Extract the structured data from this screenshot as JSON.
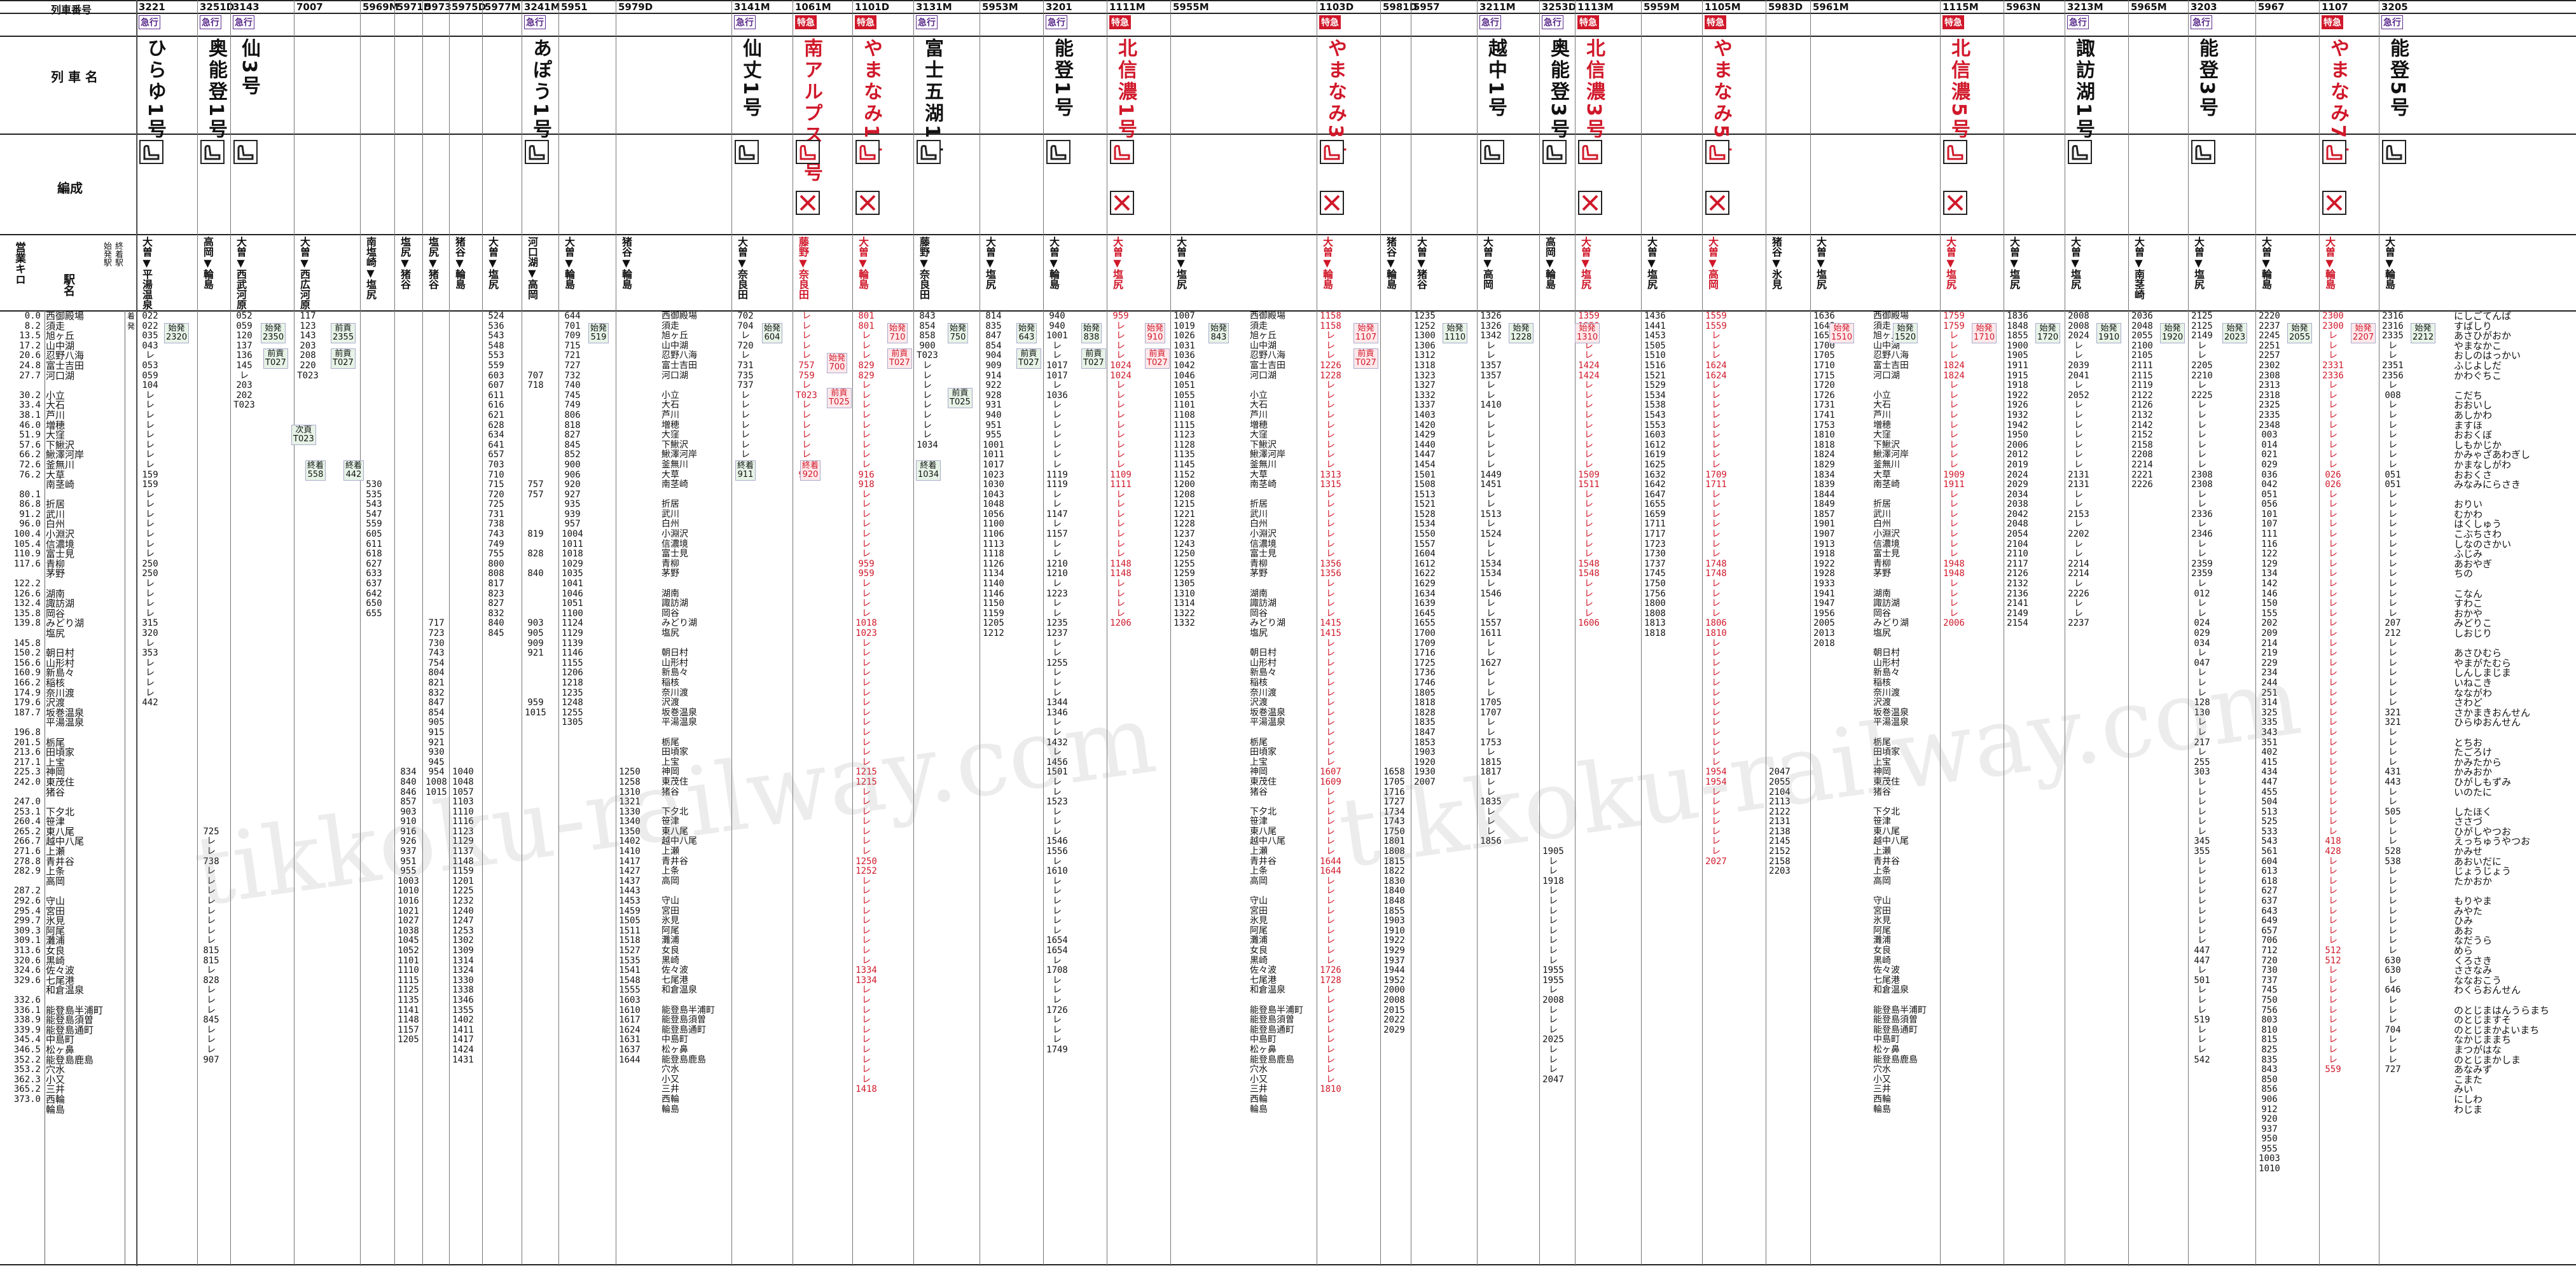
{
  "header": {
    "row_label_number": "列車番号",
    "row_label_name": "列 車 名",
    "row_label_formation": "編成",
    "row_label_km": "営業キロ",
    "row_label_station": "駅名",
    "row_label_origin": "始発駅",
    "row_label_terminal": "終着駅"
  },
  "trains": [
    {
      "no": "3221",
      "type": "急行",
      "name": "ひらゆ1号",
      "dest": "大曽▼平湯温泉"
    },
    {
      "no": "3251D",
      "type": "急行",
      "name": "奥能登1号",
      "dest": "高岡▼輪島"
    },
    {
      "no": "3143",
      "type": "急行",
      "name": "仙3号",
      "dest": "大曽▼西武河原"
    },
    {
      "no": "7007",
      "type": "",
      "name": "",
      "dest": "大曽▼西広河原"
    },
    {
      "no": "5969M",
      "type": "",
      "name": "",
      "dest": "南塩崎▼塩尻"
    },
    {
      "no": "5971D",
      "type": "",
      "name": "",
      "dest": "塩尻▼猪谷"
    },
    {
      "no": "5973",
      "type": "",
      "name": "",
      "dest": "塩尻▼猪谷"
    },
    {
      "no": "5975D",
      "type": "",
      "name": "",
      "dest": "猪谷▼輪島"
    },
    {
      "no": "5977M",
      "type": "",
      "name": "",
      "dest": "大曽▼塩尻"
    },
    {
      "no": "3241M",
      "type": "急行",
      "name": "あぽう1号",
      "dest": "河口湖▼高岡"
    },
    {
      "no": "5951",
      "type": "",
      "name": "",
      "dest": "大曽▼輪島"
    },
    {
      "no": "5979D",
      "type": "",
      "name": "",
      "dest": "猪谷▼輪島"
    },
    {
      "no": "3141M",
      "type": "急行",
      "name": "仙丈1号",
      "dest": "大曽▼奈良田"
    },
    {
      "no": "1061M",
      "type": "特急",
      "name": "南アルプス1号",
      "dest": "藤野▼奈良田"
    },
    {
      "no": "1101D",
      "type": "特急",
      "name": "やまなみ1号",
      "dest": "大曽▼輪島"
    },
    {
      "no": "3131M",
      "type": "急行",
      "name": "富士五湖1号",
      "dest": "藤野▼奈良田"
    },
    {
      "no": "5953M",
      "type": "",
      "name": "",
      "dest": "大曽▼塩尻"
    },
    {
      "no": "3201",
      "type": "急行",
      "name": "能登1号",
      "dest": "大曽▼輪島"
    },
    {
      "no": "1111M",
      "type": "特急",
      "name": "北信濃1号",
      "dest": "大曽▼塩尻"
    },
    {
      "no": "5955M",
      "type": "",
      "name": "",
      "dest": "大曽▼塩尻"
    },
    {
      "no": "1103D",
      "type": "特急",
      "name": "やまなみ3号",
      "dest": "大曽▼輪島"
    },
    {
      "no": "5981D",
      "type": "",
      "name": "",
      "dest": "猪谷▼輪島"
    },
    {
      "no": "5957",
      "type": "",
      "name": "",
      "dest": "大曽▼猪谷"
    },
    {
      "no": "3211M",
      "type": "急行",
      "name": "越中1号",
      "dest": "大曽▼高岡"
    },
    {
      "no": "3253D",
      "type": "急行",
      "name": "奥能登3号",
      "dest": "高岡▼輪島"
    },
    {
      "no": "1113M",
      "type": "特急",
      "name": "北信濃3号",
      "dest": "大曽▼塩尻"
    },
    {
      "no": "5959M",
      "type": "",
      "name": "",
      "dest": "大曽▼塩尻"
    },
    {
      "no": "1105M",
      "type": "特急",
      "name": "やまなみ5号",
      "dest": "大曽▼高岡"
    },
    {
      "no": "5983D",
      "type": "",
      "name": "",
      "dest": "猪谷▼氷見"
    },
    {
      "no": "5961M",
      "type": "",
      "name": "",
      "dest": "大曽▼塩尻"
    },
    {
      "no": "1115M",
      "type": "特急",
      "name": "北信濃5号",
      "dest": "大曽▼塩尻"
    },
    {
      "no": "5963N",
      "type": "",
      "name": "",
      "dest": "大曽▼塩尻"
    },
    {
      "no": "3213M",
      "type": "急行",
      "name": "諏訪湖1号",
      "dest": "大曽▼塩尻"
    },
    {
      "no": "5965M",
      "type": "",
      "name": "",
      "dest": "大曽▼南茎崎"
    },
    {
      "no": "3203",
      "type": "急行",
      "name": "能登3号",
      "dest": "大曽▼塩尻"
    },
    {
      "no": "5967",
      "type": "",
      "name": "",
      "dest": "大曽▼輪島"
    },
    {
      "no": "1107",
      "type": "特急",
      "name": "やまなみ7号",
      "dest": "大曽▼輪島"
    },
    {
      "no": "3205",
      "type": "急行",
      "name": "能登5号",
      "dest": "大曽▼輪島"
    }
  ],
  "km": "0.0\n8.2\n13.5\n17.2\n20.6\n24.8\n27.7\n\n30.2\n33.4\n38.1\n46.0\n51.9\n57.6\n66.2\n72.6\n76.2\n\n80.1\n86.8\n91.2\n96.0\n100.4\n105.4\n110.9\n117.6\n\n122.2\n126.6\n132.4\n135.8\n139.8\n\n145.8\n150.2\n156.6\n160.9\n166.2\n174.9\n179.6\n187.7\n\n196.8\n201.5\n213.6\n217.1\n225.3\n242.0\n\n247.0\n253.1\n260.4\n265.2\n266.7\n271.6\n278.8\n282.9\n\n287.2\n292.6\n295.4\n299.7\n309.3\n309.1\n313.6\n320.6\n324.6\n329.6\n\n332.6\n336.1\n338.9\n339.9\n345.4\n346.5\n352.2\n353.2\n362.3\n365.2\n373.0",
  "stations": "西御殿場\n須走\n旭ヶ丘\n山中湖\n忍野八海\n富士吉田\n河口湖\n\n小立\n大石\n芦川\n増穂\n大窪\n下鰍沢\n鰍澤河岸\n釜無川\n大草\n南茎崎\n\n折居\n武川\n白州\n小淵沢\n信濃境\n富士見\n青柳\n茅野\n\n湖南\n諏訪湖\n岡谷\nみどり湖\n塩尻\n\n朝日村\n山形村\n新島々\n稲核\n奈川渡\n沢渡\n坂巻温泉\n平湯温泉\n\n栃尾\n田頃家\n上宝\n神岡\n東茂住\n猪谷\n\n下夕北\n笹津\n東八尾\n越中八尾\n上瀬\n青井谷\n上条\n高岡\n\n守山\n宮田\n氷見\n阿尾\n灘浦\n女良\n黒崎\n佐々波\n七尾港\n和倉温泉\n\n能登島半浦町\n能登島須曽\n能登島通町\n中島町\n松ヶ鼻\n能登島鹿島\n穴水\n小又\n三井\n西輪\n輪島",
  "kana": "にしごてんば\nすばしり\nあさひがおか\nやまなかこ\nおしのはっかい\nふじよしだ\nかわぐちこ\n\nこだち\nおおいし\nあしかわ\nますほ\nおおくぼ\nしもかじか\nかみゃざあわぎし\nかまなしがわ\nおおくさ\nみなみにらさき\n\nおりい\nむかわ\nはくしゅう\nこぶちさわ\nしなのさかい\nふじみ\nあおやぎ\nちの\n\nこなん\nすわこ\nおかや\nみどりこ\nしおじり\n\nあさひむら\nやまがたむら\nしんしまじま\nいねこき\nなながわ\nさわど\nさかまきおんせん\nひらゆおんせん\n\nとちお\nたごろけ\nかみたから\nかみおか\nひがしもずみ\nいのたに\n\nしたほく\nささづ\nひがしやつお\nえっちゅうやつお\nかみせ\nあおいだに\nじょうじょう\nたかおか\n\nもりやま\nみやた\nひみ\nあお\nなだうら\nめら\nくろさき\nささなみ\nななおこう\nわくらおんせん\n\nのとじまはんうらまち\nのとじますそ\nのとじまかよいまち\nなかじままち\nまつがはな\nのとじまかしま\nあなみず\nこまた\nみい\nにしわ\nわじま",
  "times": [
    "022\n022\n035\n043\nレ\n053\n059\n104\nレ\nレ\nレ\nレ\nレ\nレ\nレ\nレ\n159\n159\nレ\nレ\nレ\nレ\nレ\nレ\nレ\n250\n250\nレ\nレ\nレ\nレ\n315\n320\nレ\n353\nレ\nレ\nレ\nレ\n442",
    "\n\n\n\n\n\n\n\n\n\n\n\n\n\n\n\n\n\n\n\n\n\n\n\n\n\n\n\n\n\n\n\n\n\n\n\n\n\n\n\n\n\n\n\n\n\n\n\n\n\n\n\n725\nレ\nレ\n738\nレ\nレ\nレ\nレ\nレ\nレ\nレ\nレ\n815\n815\nレ\n828\nレ\nレ\nレ\n845\nレ\nレ\nレ\n907",
    "052\n059\n120\n137\n136\n145\nレ\n203\n202\nT023",
    "117\n123\n143\n203\n208\n220\nT023",
    "\n\n\n\n\n\n\n\n\n\n\n\n\n\n\n\n\n530\n535\n543\n547\n559\n605\n611\n618\n627\n633\n637\n642\n650\n655",
    "\n\n\n\n\n\n\n\n\n\n\n\n\n\n\n\n\n\n\n\n\n\n\n\n\n\n\n\n\n\n\n\n\n\n\n\n\n\n\n\n\n\n\n\n\n\n834\n840\n846\n857\n903\n910\n916\n926\n937\n951\n955\n1003\n1010\n1016\n1021\n1027\n1038\n1045\n1052\n1101\n1110\n1115\n1125\n1135\n1141\n1148\n1157\n1205",
    "\n\n\n\n\n\n\n\n\n\n\n\n\n\n\n\n\n\n\n\n\n\n\n\n\n\n\n\n\n\n\n717\n723\n730\n743\n754\n804\n821\n832\n847\n854\n905\n915\n921\n930\n945\n954\n1008\n1015",
    "\n\n\n\n\n\n\n\n\n\n\n\n\n\n\n\n\n\n\n\n\n\n\n\n\n\n\n\n\n\n\n\n\n\n\n\n\n\n\n\n\n\n\n\n\n\n1040\n1048\n1057\n1103\n1110\n1116\n1123\n1129\n1137\n1148\n1159\n1201\n1225\n1232\n1240\n1247\n1253\n1302\n1309\n1314\n1324\n1330\n1338\n1346\n1355\n1402\n1411\n1417\n1424\n1431",
    "524\n536\n543\n548\n553\n559\n603\n607\n611\n616\n621\n628\n634\n641\n657\n703\n710\n715\n720\n725\n731\n738\n743\n749\n755\n800\n808\n817\n823\n827\n832\n840\n845",
    "\n\n\n\n\n\n707\n718\n\n\n\n\n\n\n\n\n\n757\n757\n\n\n\n819\n\n828\n\n840\n\n\n\n\n903\n905\n909\n921\n\n\n\n\n959\n1015",
    "644\n701\n709\n715\n721\n727\n732\n740\n745\n749\n806\n818\n827\n845\n852\n900\n906\n920\n927\n935\n939\n957\n1004\n1011\n1018\n1029\n1035\n1041\n1046\n1051\n1100\n1124\n1129\n1139\n1146\n1155\n1206\n1218\n1235\n1248\n1255\n1305",
    "\n\n\n\n\n\n\n\n\n\n\n\n\n\n\n\n\n\n\n\n\n\n\n\n\n\n\n\n\n\n\n\n\n\n\n\n\n\n\n\n\n\n\n\n\n\n1250\n1258\n1310\n1321\n1330\n1340\n1350\n1402\n1410\n1417\n1427\n1437\n1443\n1453\n1459\n1505\n1511\n1518\n1527\n1535\n1541\n1548\n1555\n1603\n1610\n1617\n1624\n1631\n1637\n1644",
    "702\n704\nレ\n720\nレ\n731\n735\n737\nレ\nレ\nレ\nレ\nレ\nレ\nレ\nレ\n911",
    "レ\nレ\nレ\nレ\nレ\n757\n759\nレ\nT023\nレ\nレ\nレ\nレ\nレ\nレ\nレ\n920",
    "801\n801\nレ\nレ\nレ\n829\n829\nレ\nレ\nレ\nレ\nレ\nレ\nレ\nレ\nレ\n916\n918\nレ\nレ\nレ\nレ\nレ\nレ\nレ\n959\n959\nレ\nレ\nレ\nレ\n1018\n1023\nレ\nレ\nレ\nレ\nレ\nレ\nレ\nレ\nレ\nレ\nレ\nレ\nレ\n1215\n1215\nレ\nレ\nレ\nレ\nレ\nレ\nレ\n1250\n1252\nレ\nレ\nレ\nレ\nレ\nレ\nレ\nレ\nレ\n1334\n1334\nレ\nレ\nレ\nレ\nレ\nレ\nレ\nレ\nレ\nレ\n1418",
    "843\n854\n858\n900\nT023\nレ\nレ\nレ\nレ\nレ\nレ\nレ\nレ\n1034",
    "814\n835\n847\n854\n904\n909\n914\n922\n928\n931\n940\n951\n955\n1001\n1011\n1017\n1023\n1030\n1043\n1048\n1056\n1100\n1106\n1113\n1118\n1126\n1134\n1140\n1146\n1150\n1159\n1205\n1212",
    "940\n940\n1001\nレ\nレ\n1017\n1017\nレ\n1036\nレ\nレ\nレ\nレ\nレ\nレ\nレ\n1119\n1119\nレ\nレ\n1147\nレ\n1157\nレ\nレ\n1210\n1210\nレ\n1223\nレ\nレ\n1235\n1237\nレ\nレ\n1255\nレ\nレ\nレ\n1344\n1346\nレ\nレ\n1432\nレ\n1456\n1501\nレ\nレ\n1523\nレ\nレ\nレ\n1546\n1556\nレ\n1610\nレ\nレ\nレ\nレ\nレ\nレ\n1654\n1654\nレ\n1708\nレ\nレ\nレ\n1726\nレ\nレ\nレ\n1749",
    "959\nレ\nレ\nレ\nレ\n1024\n1024\nレ\nレ\nレ\nレ\nレ\nレ\nレ\nレ\nレ\n1109\n1111\nレ\nレ\nレ\nレ\nレ\nレ\nレ\n1148\n1148\nレ\nレ\nレ\nレ\n1206",
    "1007\n1019\n1026\n1031\n1036\n1042\n1046\n1051\n1055\n1101\n1108\n1115\n1123\n1128\n1135\n1145\n1152\n1200\n1208\n1215\n1221\n1228\n1237\n1243\n1250\n1255\n1259\n1305\n1310\n1314\n1322\n1332",
    "1158\n1158\nレ\nレ\nレ\n1226\n1228\nレ\nレ\nレ\nレ\nレ\nレ\nレ\nレ\nレ\n1313\n1315\nレ\nレ\nレ\nレ\nレ\nレ\nレ\n1356\n1356\nレ\nレ\nレ\nレ\n1415\n1415\nレ\nレ\nレ\nレ\nレ\nレ\nレ\nレ\nレ\nレ\nレ\nレ\nレ\n1607\n1609\nレ\nレ\nレ\nレ\nレ\nレ\nレ\n1644\n1644\nレ\nレ\nレ\nレ\nレ\nレ\nレ\nレ\nレ\n1726\n1728\nレ\nレ\nレ\nレ\nレ\nレ\nレ\nレ\nレ\nレ\n1810",
    "\n\n\n\n\n\n\n\n\n\n\n\n\n\n\n\n\n\n\n\n\n\n\n\n\n\n\n\n\n\n\n\n\n\n\n\n\n\n\n\n\n\n\n\n\n\n1658\n1705\n1716\n1727\n1734\n1743\n1750\n1801\n1808\n1815\n1822\n1830\n1840\n1848\n1855\n1903\n1910\n1922\n1929\n1937\n1944\n1952\n2000\n2008\n2015\n2022\n2029",
    "1235\n1252\n1300\n1306\n1312\n1318\n1323\n1327\n1332\n1337\n1403\n1420\n1429\n1440\n1447\n1454\n1501\n1508\n1513\n1521\n1528\n1534\n1550\n1557\n1604\n1612\n1622\n1629\n1634\n1639\n1645\n1655\n1700\n1709\n1716\n1725\n1736\n1746\n1805\n1818\n1828\n1835\n1847\n1853\n1903\n1920\n1930\n2007",
    "1326\n1326\n1342\nレ\nレ\n1357\n1357\nレ\nレ\n1410\nレ\nレ\nレ\nレ\nレ\nレ\n1449\n1451\nレ\nレ\n1513\nレ\n1524\nレ\nレ\n1534\n1534\nレ\n1546\nレ\nレ\n1557\n1611\nレ\nレ\n1627\nレ\nレ\nレ\n1705\n1707\nレ\nレ\n1753\nレ\n1815\n1817\nレ\nレ\n1835\nレ\nレ\nレ\n1856",
    "\n\n\n\n\n\n\n\n\n\n\n\n\n\n\n\n\n\n\n\n\n\n\n\n\n\n\n\n\n\n\n\n\n\n\n\n\n\n\n\n\n\n\n\n\n\n\n\n\n\n\n\n\n\n1905\nレ\nレ\n1918\nレ\nレ\nレ\nレ\nレ\nレ\nレ\nレ\n1955\n1955\nレ\n2008\nレ\nレ\nレ\n2025\nレ\nレ\nレ\n2047",
    "1359\n1359\nレ\nレ\nレ\n1424\n1424\nレ\nレ\nレ\nレ\nレ\nレ\nレ\nレ\nレ\n1509\n1511\nレ\nレ\nレ\nレ\nレ\nレ\nレ\n1548\n1548\nレ\nレ\nレ\nレ\n1606",
    "1436\n1441\n1453\n1505\n1510\n1516\n1521\n1529\n1534\n1538\n1543\n1553\n1603\n1612\n1619\n1625\n1632\n1642\n1647\n1655\n1659\n1711\n1717\n1723\n1730\n1737\n1745\n1750\n1756\n1800\n1808\n1813\n1818",
    "1559\n1559\nレ\nレ\nレ\n1624\n1624\nレ\nレ\nレ\nレ\nレ\nレ\nレ\nレ\nレ\n1709\n1711\nレ\nレ\nレ\nレ\nレ\nレ\nレ\n1748\n1748\nレ\nレ\nレ\nレ\n1806\n1810\nレ\nレ\nレ\nレ\nレ\nレ\nレ\nレ\nレ\nレ\nレ\nレ\nレ\n1954\n1954\nレ\nレ\nレ\nレ\nレ\nレ\nレ\n2027",
    "\n\n\n\n\n\n\n\n\n\n\n\n\n\n\n\n\n\n\n\n\n\n\n\n\n\n\n\n\n\n\n\n\n\n\n\n\n\n\n\n\n\n\n\n\n\n2047\n2055\n2104\n2113\n2122\n2131\n2138\n2145\n2152\n2158\n2203",
    "1636\n1648\n1655\n1700\n1705\n1710\n1715\n1720\n1726\n1731\n1741\n1753\n1810\n1818\n1824\n1829\n1834\n1839\n1844\n1849\n1857\n1901\n1907\n1913\n1918\n1922\n1928\n1933\n1941\n1947\n1956\n2005\n2013\n2018",
    "1759\n1759\nレ\nレ\nレ\n1824\n1824\nレ\nレ\nレ\nレ\nレ\nレ\nレ\nレ\nレ\n1909\n1911\nレ\nレ\nレ\nレ\nレ\nレ\nレ\n1948\n1948\nレ\nレ\nレ\nレ\n2006",
    "1836\n1848\n1855\n1900\n1905\n1911\n1915\n1918\n1922\n1926\n1932\n1942\n1950\n2006\n2012\n2019\n2024\n2029\n2034\n2038\n2042\n2048\n2054\n2104\n2110\n2117\n2126\n2132\n2136\n2141\n2149\n2154",
    "2008\n2008\n2024\nレ\nレ\n2039\n2041\nレ\n2052\nレ\nレ\nレ\nレ\nレ\nレ\nレ\n2131\n2131\nレ\nレ\n2153\nレ\n2202\nレ\nレ\n2214\n2214\nレ\n2226\nレ\nレ\n2237",
    "2036\n2048\n2055\n2100\n2105\n2111\n2115\n2119\n2122\n2126\n2132\n2142\n2152\n2158\n2208\n2214\n2221\n2226",
    "2125\n2125\n2149\nレ\nレ\n2205\n2210\nレ\n2225\nレ\nレ\nレ\nレ\nレ\nレ\nレ\n2308\n2308\nレ\nレ\n2336\nレ\n2346\nレ\nレ\n2359\n2359\nレ\n012\nレ\nレ\n024\n029\n034\nレ\n047\nレ\nレ\nレ\n128\n130\nレ\nレ\n217\nレ\n255\n303\nレ\nレ\nレ\nレ\nレ\nレ\n345\n355\nレ\nレ\nレ\nレ\nレ\nレ\nレ\nレ\nレ\n447\n447\nレ\n501\nレ\nレ\nレ\n519\nレ\nレ\nレ\n542",
    "2220\n2237\n2245\n2251\n2257\n2302\n2308\n2313\n2318\n2325\n2335\n2348\n003\n014\n021\n029\n036\n042\n051\n056\n101\n107\n111\n116\n122\n129\n134\n142\n146\n150\n155\n202\n209\n214\n219\n229\n234\n244\n251\n314\n325\n335\n343\n351\n402\n415\n434\n447\n455\n504\n513\n525\n533\n543\n561\n604\n613\n618\n627\n637\n643\n649\n657\n706\n712\n720\n730\n737\n745\n750\n756\n803\n810\n815\n825\n835\n843\n850\n856\n906\n912\n920\n937\n950\n955\n1003\n1010",
    "2300\n2300\nレ\nレ\nレ\n2331\n2336\nレ\nレ\nレ\nレ\nレ\nレ\nレ\nレ\nレ\n026\n026\nレ\nレ\nレ\nレ\nレ\nレ\nレ\nレ\nレ\nレ\nレ\nレ\nレ\nレ\nレ\nレ\nレ\nレ\nレ\nレ\nレ\nレ\nレ\nレ\nレ\nレ\nレ\nレ\nレ\nレ\nレ\nレ\nレ\nレ\nレ\n418\n428\nレ\nレ\nレ\nレ\nレ\nレ\nレ\nレ\nレ\n512\n512\nレ\nレ\nレ\nレ\nレ\nレ\nレ\nレ\nレ\nレ\n559",
    "2316\n2316\n2335\nレ\nレ\n2351\n2356\nレ\n008\nレ\nレ\nレ\nレ\nレ\nレ\nレ\n051\n051\nレ\nレ\nレ\nレ\nレ\nレ\nレ\nレ\nレ\nレ\nレ\nレ\nレ\n207\n212\nレ\nレ\nレ\nレ\nレ\nレ\nレ\n321\n321\nレ\nレ\nレ\nレ\n431\n443\nレ\nレ\n505\nレ\nレ\nレ\n528\n538\nレ\nレ\nレ\nレ\nレ\nレ\nレ\nレ\nレ\n630\n630\nレ\n646\nレ\nレ\nレ\n704\nレ\nレ\nレ\n727"
  ],
  "tags": {
    "t1": "始発\n2320",
    "t2": "始発\n2350",
    "t3": "前貢\nT027",
    "t4": "前貢\n2355",
    "t5": "始発\n519",
    "t6": "前貢\nT027",
    "t7": "始発\n604",
    "t8": "始発\n700",
    "t9": "前貢\nT025",
    "t10": "始発\n710",
    "t11": "前貢\nT027",
    "t12": "始発\n750",
    "t13": "前貢\nT025",
    "t14": "始発\n643",
    "t15": "前貢\nT027",
    "t16": "始発\n838",
    "t17": "前貢\nT027",
    "t18": "始発\n910",
    "t19": "前貢\nT027",
    "t20": "始発\n843",
    "t21": "始発\n1107",
    "t22": "前貢\nT027",
    "t23": "始発\n1110",
    "t24": "始発\n1228",
    "t25": "始発\n1310",
    "t26": "始発\n1510",
    "t27": "始発\n1520",
    "t28": "始発\n1710",
    "t29": "始発\n1720",
    "t30": "始発\n1910",
    "t31": "始発\n1920",
    "t32": "始発\n2023",
    "t33": "始発\n2055",
    "t34": "始発\n2207",
    "t35": "始発\n2212",
    "end1": "次頁\nT023",
    "end2": "終着\n442",
    "end3": "終着\n558",
    "end4": "終着\n911",
    "end5": "終着\n920",
    "end6": "終着\n1034"
  },
  "stops_label": "着\n発",
  "watermark": "tikkoku-railway.com"
}
